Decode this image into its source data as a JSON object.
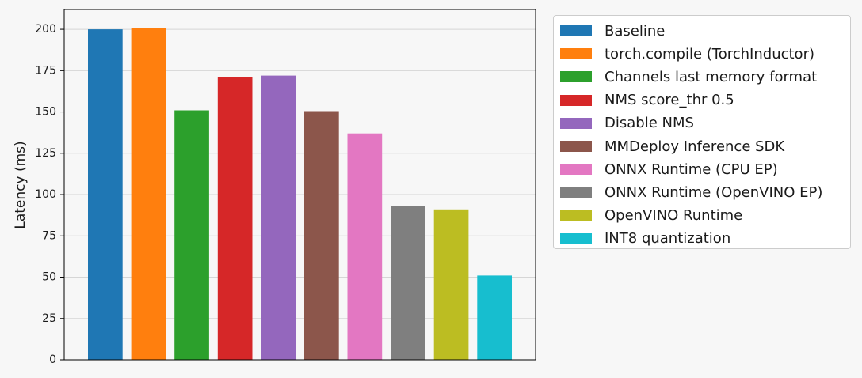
{
  "chart_data": {
    "type": "bar",
    "title": "",
    "xlabel": "",
    "ylabel": "Latency (ms)",
    "ylim": [
      0,
      212
    ],
    "yticks": [
      0,
      25,
      50,
      75,
      100,
      125,
      150,
      175,
      200
    ],
    "grid": "horizontal",
    "legend_position": "outside-right",
    "series": [
      {
        "name": "Baseline",
        "value": 200,
        "color": "#1f77b4"
      },
      {
        "name": "torch.compile (TorchInductor)",
        "value": 201,
        "color": "#ff7f0e"
      },
      {
        "name": "Channels last memory format",
        "value": 151,
        "color": "#2ca02c"
      },
      {
        "name": "NMS score_thr 0.5",
        "value": 171,
        "color": "#d62728"
      },
      {
        "name": "Disable NMS",
        "value": 172,
        "color": "#9467bd"
      },
      {
        "name": "MMDeploy Inference SDK",
        "value": 150.5,
        "color": "#8c564b"
      },
      {
        "name": "ONNX Runtime (CPU EP)",
        "value": 137,
        "color": "#e377c2"
      },
      {
        "name": "ONNX Runtime (OpenVINO EP)",
        "value": 93,
        "color": "#7f7f7f"
      },
      {
        "name": "OpenVINO Runtime",
        "value": 91,
        "color": "#bcbd22"
      },
      {
        "name": "INT8 quantization",
        "value": 51,
        "color": "#17becf"
      }
    ]
  }
}
